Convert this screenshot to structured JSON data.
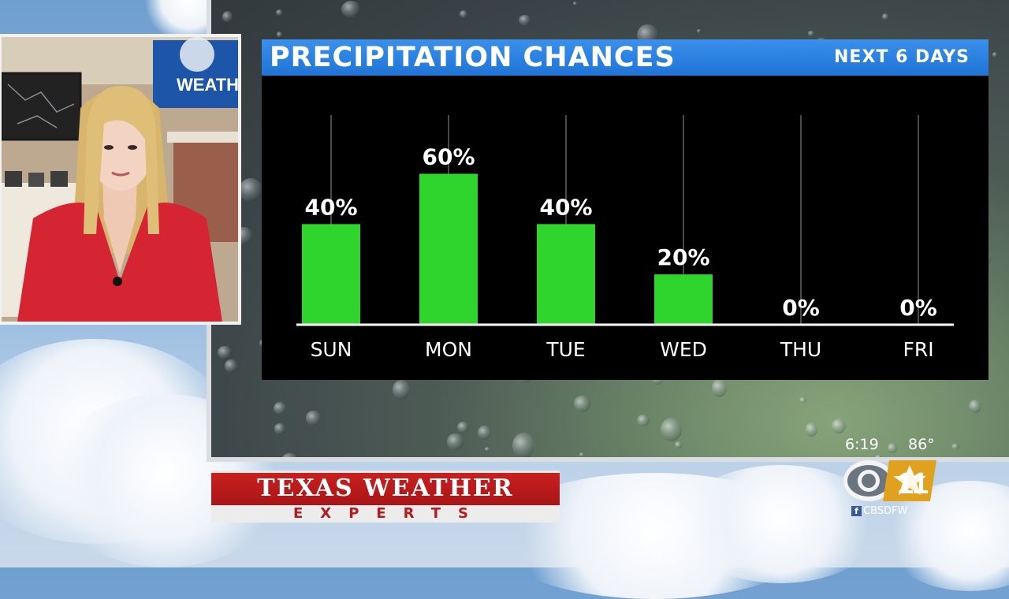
{
  "panel": {
    "title": "PRECIPITATION CHANCES",
    "subtitle": "NEXT 6 DAYS"
  },
  "chart_data": {
    "type": "bar",
    "title": "PRECIPITATION CHANCES",
    "subtitle": "NEXT 6 DAYS",
    "categories": [
      "SUN",
      "MON",
      "TUE",
      "WED",
      "THU",
      "FRI"
    ],
    "values": [
      40,
      60,
      40,
      20,
      0,
      0
    ],
    "data_labels": [
      "40%",
      "60%",
      "40%",
      "20%",
      "0%",
      "0%"
    ],
    "ylim": [
      0,
      100
    ],
    "xlabel": "",
    "ylabel": "",
    "grid": false,
    "bar_color": "#2fd52c",
    "background": "#000000"
  },
  "inset": {
    "tv_text": "WEATH"
  },
  "branding": {
    "line1": "TEXAS WEATHER",
    "line2": "EXPERTS"
  },
  "bug": {
    "time": "6:19",
    "temperature": "86°",
    "logo_number": "11",
    "social_handle": "CBSDFW"
  },
  "colors": {
    "header_blue": "#1f74d6",
    "brand_red": "#b31b1c"
  }
}
